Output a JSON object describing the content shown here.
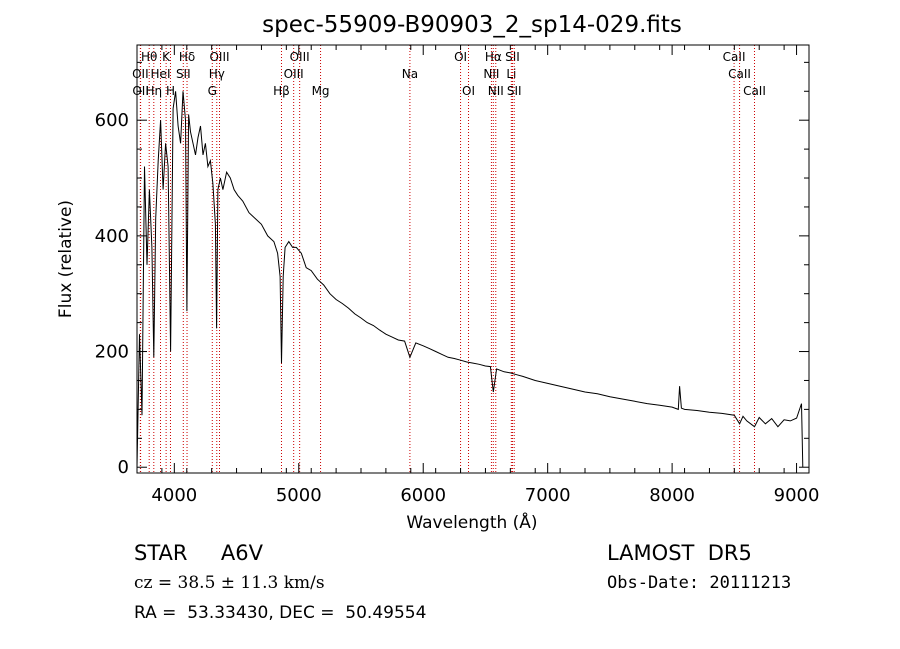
{
  "chart_data": {
    "type": "line",
    "title": "spec-55909-B90903_2_sp14-029.fits",
    "xlabel": "Wavelength (Å)",
    "ylabel": "Flux (relative)",
    "xlim": [
      3700,
      9100
    ],
    "ylim": [
      -10,
      730
    ],
    "x_ticks": [
      4000,
      5000,
      6000,
      7000,
      8000,
      9000
    ],
    "y_ticks": [
      0,
      200,
      400,
      600
    ],
    "grid": false,
    "line_color": "#000000",
    "marker_color": "#cc0000",
    "series": [
      {
        "values_x": [
          3700,
          3720,
          3740,
          3760,
          3780,
          3800,
          3820,
          3835,
          3850,
          3870,
          3890,
          3910,
          3930,
          3950,
          3970,
          3990,
          4010,
          4030,
          4050,
          4070,
          4090,
          4101,
          4115,
          4130,
          4150,
          4170,
          4190,
          4210,
          4230,
          4250,
          4270,
          4290,
          4310,
          4330,
          4340,
          4350,
          4370,
          4390,
          4420,
          4450,
          4480,
          4510,
          4550,
          4600,
          4650,
          4700,
          4750,
          4800,
          4830,
          4850,
          4861,
          4875,
          4890,
          4920,
          4950,
          4980,
          5020,
          5060,
          5100,
          5150,
          5200,
          5250,
          5300,
          5350,
          5400,
          5450,
          5500,
          5550,
          5600,
          5650,
          5700,
          5750,
          5800,
          5850,
          5893,
          5940,
          6000,
          6050,
          6100,
          6150,
          6200,
          6250,
          6300,
          6350,
          6400,
          6450,
          6500,
          6540,
          6563,
          6590,
          6650,
          6700,
          6750,
          6800,
          6900,
          7000,
          7100,
          7200,
          7300,
          7400,
          7500,
          7600,
          7700,
          7800,
          7900,
          8000,
          8050,
          8060,
          8075,
          8100,
          8200,
          8300,
          8400,
          8500,
          8542,
          8570,
          8600,
          8662,
          8700,
          8750,
          8800,
          8850,
          8900,
          8950,
          9000,
          9040,
          9050
        ],
        "values_y": [
          0,
          230,
          90,
          520,
          350,
          480,
          380,
          190,
          430,
          530,
          600,
          480,
          560,
          520,
          200,
          620,
          650,
          590,
          560,
          650,
          600,
          270,
          610,
          580,
          560,
          540,
          570,
          590,
          540,
          560,
          520,
          530,
          490,
          420,
          240,
          480,
          500,
          480,
          510,
          500,
          480,
          470,
          460,
          440,
          430,
          420,
          400,
          390,
          370,
          330,
          180,
          330,
          380,
          390,
          380,
          380,
          370,
          345,
          340,
          325,
          315,
          300,
          290,
          283,
          275,
          265,
          258,
          250,
          245,
          237,
          230,
          225,
          220,
          218,
          190,
          215,
          210,
          205,
          200,
          195,
          190,
          188,
          185,
          182,
          180,
          178,
          175,
          174,
          130,
          170,
          165,
          163,
          160,
          157,
          150,
          145,
          140,
          135,
          130,
          127,
          122,
          118,
          114,
          110,
          107,
          104,
          100,
          140,
          102,
          100,
          98,
          95,
          93,
          90,
          75,
          88,
          80,
          70,
          86,
          75,
          84,
          70,
          82,
          80,
          85,
          110,
          0
        ]
      }
    ],
    "line_markers": [
      {
        "name": "Hθ",
        "x": 3798,
        "row": 1
      },
      {
        "name": "K",
        "x": 3934,
        "row": 1
      },
      {
        "name": "Hδ",
        "x": 4102,
        "row": 1
      },
      {
        "name": "OIII",
        "x": 4363,
        "row": 1
      },
      {
        "name": "OIII",
        "x": 5007,
        "row": 1
      },
      {
        "name": "OI",
        "x": 6300,
        "row": 1
      },
      {
        "name": "Hα",
        "x": 6563,
        "row": 1
      },
      {
        "name": "SII",
        "x": 6717,
        "row": 1
      },
      {
        "name": "CaII",
        "x": 8498,
        "row": 1
      },
      {
        "name": "OII",
        "x": 3727,
        "row": 2
      },
      {
        "name": "HeI",
        "x": 3889,
        "row": 2
      },
      {
        "name": "SII",
        "x": 4072,
        "row": 2
      },
      {
        "name": "Hγ",
        "x": 4341,
        "row": 2
      },
      {
        "name": "OIII",
        "x": 4959,
        "row": 2
      },
      {
        "name": "Na",
        "x": 5893,
        "row": 2
      },
      {
        "name": "NII",
        "x": 6548,
        "row": 2
      },
      {
        "name": "Li",
        "x": 6708,
        "row": 2
      },
      {
        "name": "CaII",
        "x": 8542,
        "row": 2
      },
      {
        "name": "OII",
        "x": 3729,
        "row": 3
      },
      {
        "name": "Hη",
        "x": 3835,
        "row": 3
      },
      {
        "name": "H",
        "x": 3969,
        "row": 3
      },
      {
        "name": "G",
        "x": 4305,
        "row": 3
      },
      {
        "name": "Hβ",
        "x": 4861,
        "row": 3
      },
      {
        "name": "Mg",
        "x": 5175,
        "row": 3
      },
      {
        "name": "OI",
        "x": 6364,
        "row": 3
      },
      {
        "name": "NII",
        "x": 6583,
        "row": 3
      },
      {
        "name": "SII",
        "x": 6731,
        "row": 3
      },
      {
        "name": "CaII",
        "x": 8662,
        "row": 3
      }
    ]
  },
  "info": {
    "object_class": "STAR     A6V",
    "survey": "LAMOST  DR5",
    "cz": "cz = 38.5 ± 11.3 km/s",
    "obs_date": "Obs-Date: 20111213",
    "radec": "RA =  53.33430, DEC =  50.49554"
  }
}
